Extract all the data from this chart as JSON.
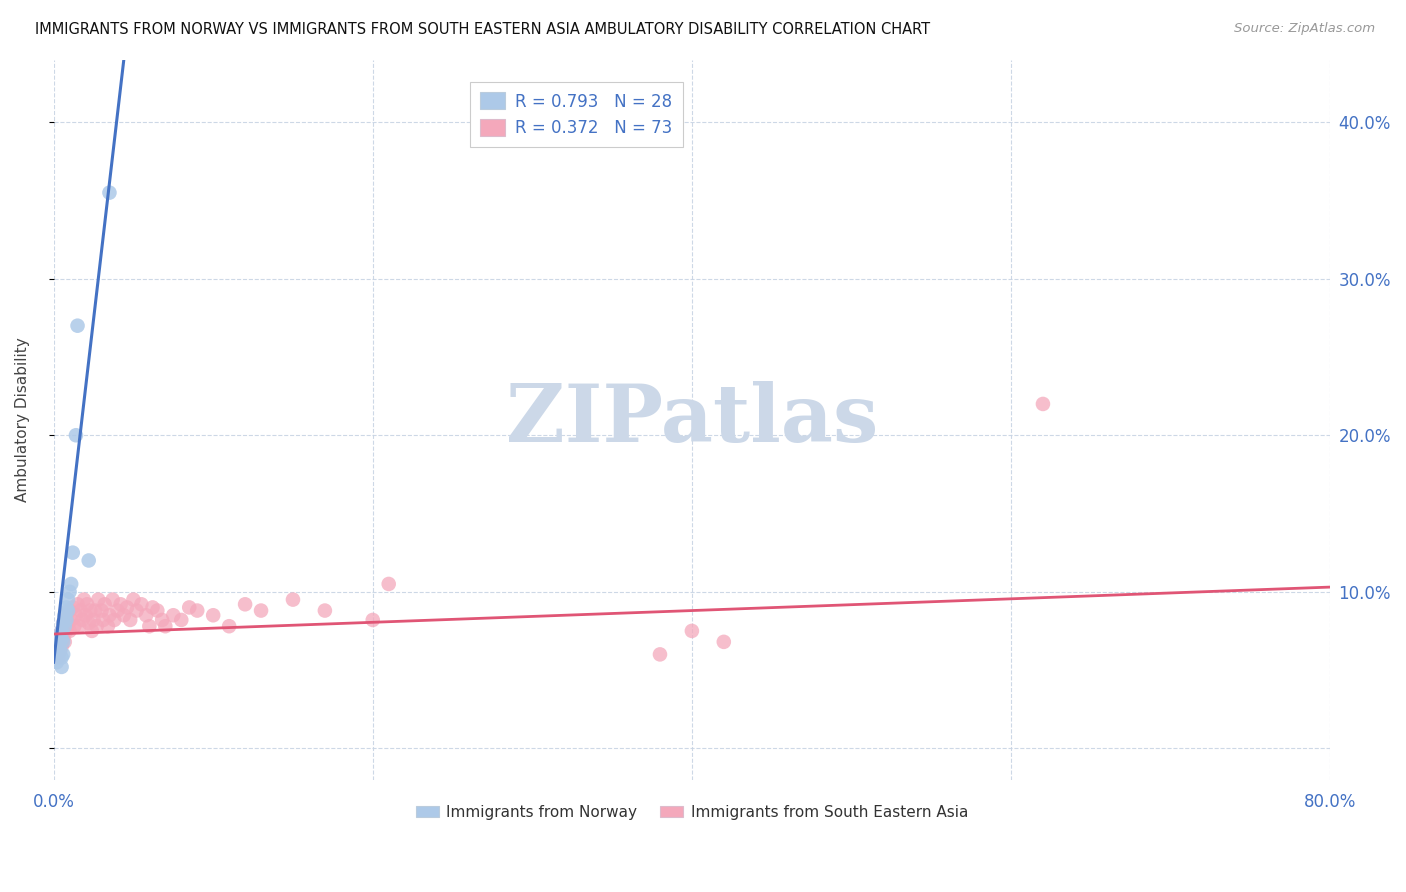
{
  "title": "IMMIGRANTS FROM NORWAY VS IMMIGRANTS FROM SOUTH EASTERN ASIA AMBULATORY DISABILITY CORRELATION CHART",
  "source": "Source: ZipAtlas.com",
  "ylabel": "Ambulatory Disability",
  "xlim": [
    0.0,
    0.8
  ],
  "ylim": [
    -0.02,
    0.44
  ],
  "norway_R": 0.793,
  "norway_N": 28,
  "sea_R": 0.372,
  "sea_N": 73,
  "norway_color": "#adc9e8",
  "norway_line_color": "#4472C4",
  "sea_color": "#f4a8bb",
  "sea_line_color": "#e05575",
  "background_color": "#ffffff",
  "grid_color": "#c8d4e4",
  "watermark_text": "ZIPatlas",
  "watermark_color": "#ccd8e8",
  "norway_x": [
    0.001,
    0.002,
    0.002,
    0.003,
    0.003,
    0.004,
    0.004,
    0.004,
    0.005,
    0.005,
    0.005,
    0.005,
    0.006,
    0.006,
    0.006,
    0.007,
    0.007,
    0.008,
    0.008,
    0.009,
    0.009,
    0.01,
    0.011,
    0.012,
    0.014,
    0.015,
    0.022,
    0.035
  ],
  "norway_y": [
    0.065,
    0.06,
    0.055,
    0.07,
    0.065,
    0.072,
    0.068,
    0.062,
    0.075,
    0.07,
    0.058,
    0.052,
    0.08,
    0.068,
    0.06,
    0.085,
    0.078,
    0.09,
    0.082,
    0.095,
    0.088,
    0.1,
    0.105,
    0.125,
    0.2,
    0.27,
    0.12,
    0.355
  ],
  "sea_x": [
    0.001,
    0.002,
    0.002,
    0.003,
    0.003,
    0.004,
    0.004,
    0.005,
    0.005,
    0.006,
    0.006,
    0.007,
    0.007,
    0.008,
    0.008,
    0.009,
    0.01,
    0.01,
    0.011,
    0.012,
    0.013,
    0.014,
    0.015,
    0.016,
    0.017,
    0.018,
    0.019,
    0.02,
    0.021,
    0.022,
    0.023,
    0.024,
    0.025,
    0.026,
    0.027,
    0.028,
    0.03,
    0.031,
    0.032,
    0.034,
    0.035,
    0.037,
    0.038,
    0.04,
    0.042,
    0.044,
    0.046,
    0.048,
    0.05,
    0.052,
    0.055,
    0.058,
    0.06,
    0.062,
    0.065,
    0.068,
    0.07,
    0.075,
    0.08,
    0.085,
    0.09,
    0.1,
    0.11,
    0.12,
    0.13,
    0.15,
    0.17,
    0.2,
    0.21,
    0.38,
    0.4,
    0.42,
    0.62
  ],
  "sea_y": [
    0.065,
    0.07,
    0.06,
    0.072,
    0.058,
    0.068,
    0.062,
    0.075,
    0.065,
    0.08,
    0.07,
    0.078,
    0.068,
    0.085,
    0.075,
    0.08,
    0.088,
    0.075,
    0.082,
    0.09,
    0.078,
    0.085,
    0.092,
    0.078,
    0.088,
    0.082,
    0.095,
    0.085,
    0.092,
    0.08,
    0.088,
    0.075,
    0.082,
    0.088,
    0.078,
    0.095,
    0.088,
    0.082,
    0.092,
    0.078,
    0.085,
    0.095,
    0.082,
    0.088,
    0.092,
    0.085,
    0.09,
    0.082,
    0.095,
    0.088,
    0.092,
    0.085,
    0.078,
    0.09,
    0.088,
    0.082,
    0.078,
    0.085,
    0.082,
    0.09,
    0.088,
    0.085,
    0.078,
    0.092,
    0.088,
    0.095,
    0.088,
    0.082,
    0.105,
    0.06,
    0.075,
    0.068,
    0.22
  ],
  "norway_line_x": [
    0.0,
    0.044
  ],
  "norway_line_y": [
    0.055,
    0.44
  ],
  "sea_line_x": [
    0.0,
    0.8
  ],
  "sea_line_y": [
    0.073,
    0.103
  ]
}
